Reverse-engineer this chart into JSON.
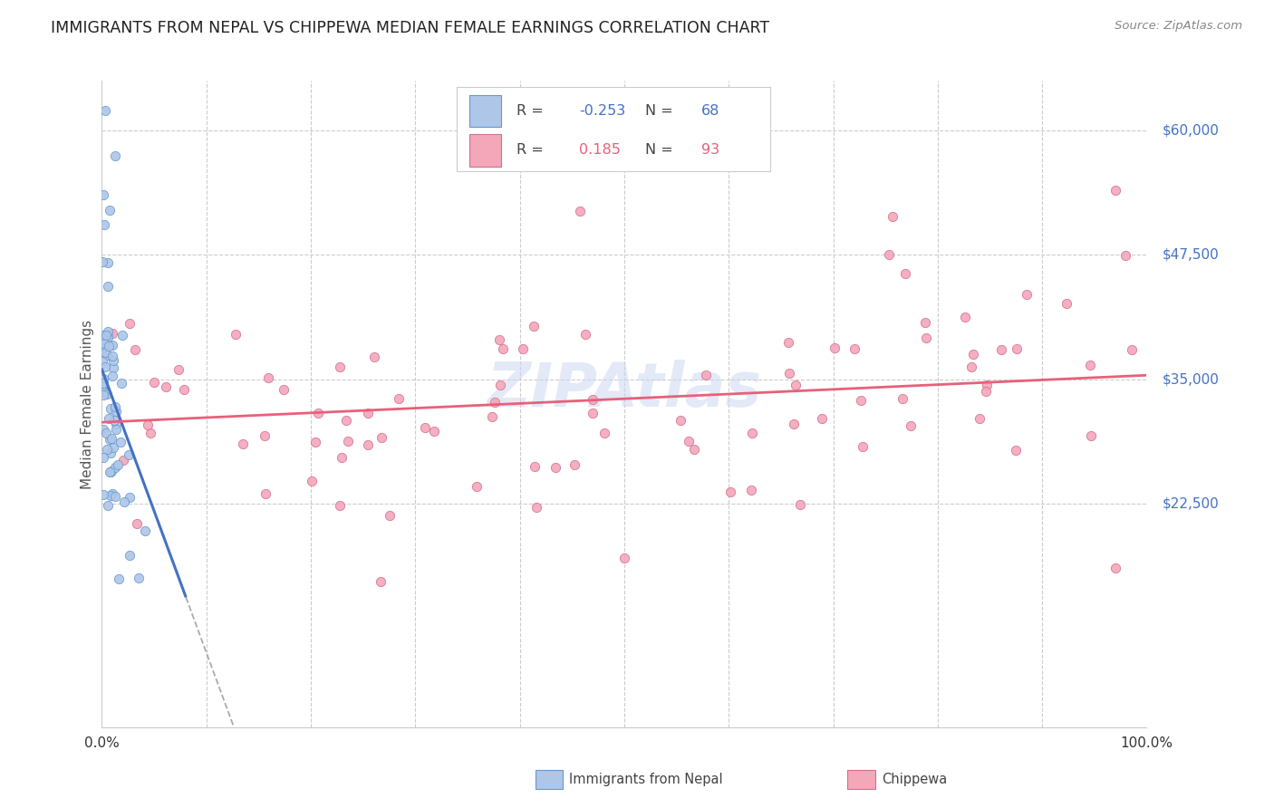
{
  "title": "IMMIGRANTS FROM NEPAL VS CHIPPEWA MEDIAN FEMALE EARNINGS CORRELATION CHART",
  "source": "Source: ZipAtlas.com",
  "ylabel": "Median Female Earnings",
  "ymin": 0,
  "ymax": 65000,
  "xmin": 0,
  "xmax": 100,
  "nepal_R": -0.253,
  "nepal_N": 68,
  "chippewa_R": 0.185,
  "chippewa_N": 93,
  "nepal_color": "#aec6e8",
  "chippewa_color": "#f4a7b9",
  "nepal_line_color": "#4472c4",
  "chippewa_line_color": "#e8607a",
  "nepal_dot_edge": "#6699cc",
  "chippewa_dot_edge": "#d07090",
  "grid_color": "#cccccc",
  "background_color": "#ffffff",
  "title_color": "#222222",
  "axis_label_color": "#4472c4",
  "ytick_positions": [
    60000,
    47500,
    35000,
    22500
  ],
  "ytick_labels": [
    "$60,000",
    "$47,500",
    "$35,000",
    "$22,500"
  ]
}
